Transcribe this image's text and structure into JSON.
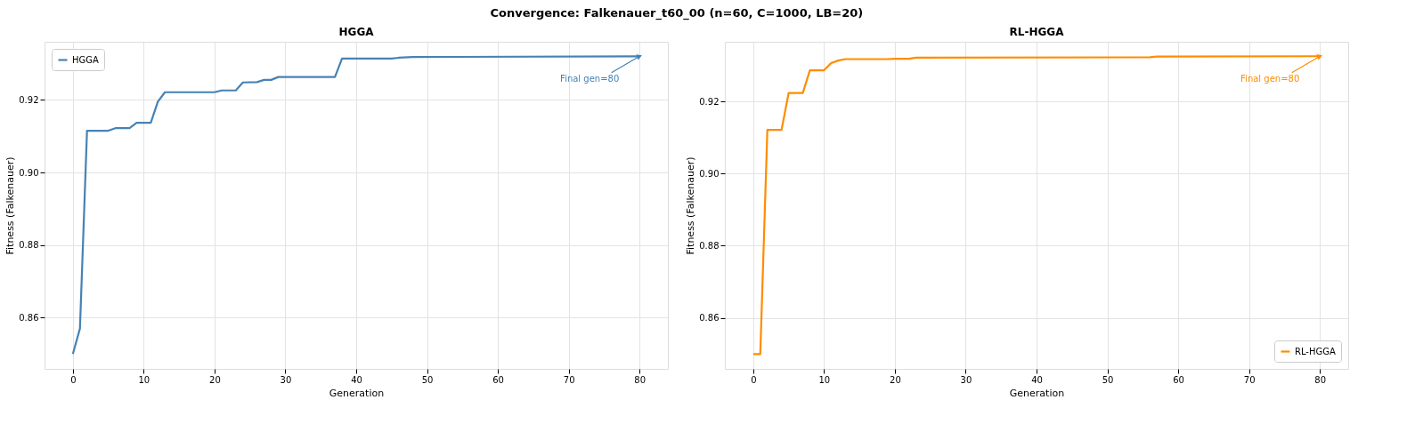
{
  "chart_data": [
    {
      "type": "line",
      "title": "HGGA",
      "xlabel": "Generation",
      "ylabel": "Fitness (Falkenauer)",
      "xlim": [
        -4,
        84
      ],
      "xticks": [
        0,
        10,
        20,
        30,
        40,
        50,
        60,
        70,
        80
      ],
      "ylim": [
        0.8459,
        0.936
      ],
      "yticks": [
        {
          "value": 0.86,
          "label": "0.86"
        },
        {
          "value": 0.88,
          "label": "0.88"
        },
        {
          "value": 0.9,
          "label": "0.90"
        },
        {
          "value": 0.92,
          "label": "0.92"
        }
      ],
      "grid": true,
      "legend": "top left",
      "marker": "none",
      "line_style": "solid",
      "annotations": [
        "Convergence: Falkenauer_t60_00  (n=60, C=1000, LB=20)",
        {
          "text": "Final gen=80",
          "x": 80,
          "y": 0.932
        }
      ],
      "series": [
        {
          "name": "HGGA",
          "color": "#4682b4",
          "x": [
            0,
            1,
            2,
            5,
            6,
            8,
            9,
            11,
            12,
            13,
            20,
            21,
            23,
            24,
            26,
            27,
            28,
            29,
            37,
            38,
            45,
            46,
            48,
            80
          ],
          "values": [
            0.85,
            0.857,
            0.9115,
            0.9115,
            0.9122,
            0.9122,
            0.9137,
            0.9137,
            0.9195,
            0.9221,
            0.9221,
            0.9226,
            0.9226,
            0.9248,
            0.9249,
            0.9255,
            0.9255,
            0.9263,
            0.9263,
            0.9314,
            0.9314,
            0.9316,
            0.9318,
            0.932
          ]
        }
      ]
    },
    {
      "type": "line",
      "title": "RL-HGGA",
      "xlabel": "Generation",
      "ylabel": "Fitness (Falkenauer)",
      "xlim": [
        -4,
        84
      ],
      "xticks": [
        0,
        10,
        20,
        30,
        40,
        50,
        60,
        70,
        80
      ],
      "ylim": [
        0.8459,
        0.9365
      ],
      "yticks": [
        {
          "value": 0.86,
          "label": "0.86"
        },
        {
          "value": 0.88,
          "label": "0.88"
        },
        {
          "value": 0.9,
          "label": "0.90"
        },
        {
          "value": 0.92,
          "label": "0.92"
        }
      ],
      "grid": true,
      "legend": "bottom right",
      "marker": "none",
      "line_style": "solid",
      "annotations": [
        {
          "text": "Final gen=80",
          "x": 80,
          "y": 0.9325
        }
      ],
      "series": [
        {
          "name": "RL-HGGA",
          "color": "#ff8c00",
          "x": [
            0,
            1,
            2,
            4,
            5,
            7,
            8,
            10,
            11,
            12,
            13,
            19,
            20,
            22,
            23,
            56,
            57,
            80
          ],
          "values": [
            0.85,
            0.85,
            0.9121,
            0.9121,
            0.9223,
            0.9223,
            0.9286,
            0.9286,
            0.9306,
            0.9313,
            0.9317,
            0.9317,
            0.9318,
            0.9318,
            0.9321,
            0.9322,
            0.9324,
            0.9325
          ]
        }
      ]
    }
  ]
}
